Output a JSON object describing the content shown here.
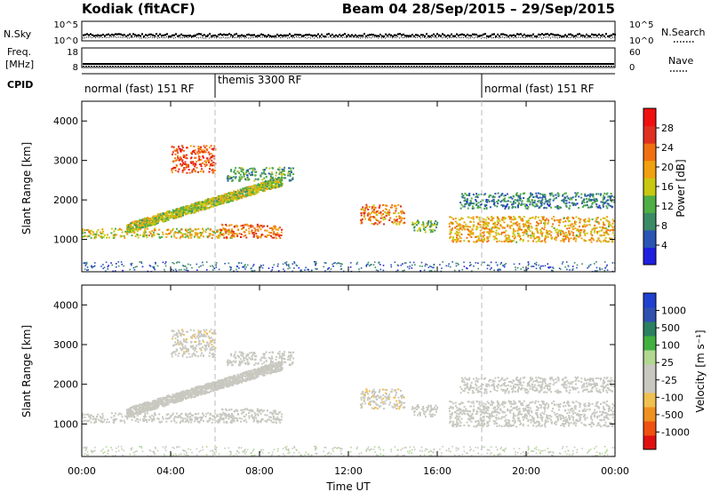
{
  "header": {
    "station": "Kodiak (fitACF)",
    "beam_info": "Beam 04  28/Sep/2015 – 29/Sep/2015"
  },
  "nsky": {
    "left_label": "N.Sky",
    "right_label": "N.Search",
    "left_ticks": [
      "10^5",
      "10^0"
    ],
    "right_ticks": [
      "10^5",
      "10^0"
    ]
  },
  "freq": {
    "left_label": "Freq.",
    "unit_label": "[MHz]",
    "right_label": "Nave",
    "left_ticks": [
      "18",
      "8"
    ],
    "right_ticks": [
      "60",
      "0"
    ]
  },
  "cpid": {
    "label": "CPID",
    "segments": [
      {
        "text": "normal (fast) 151 RF",
        "start_h": 0,
        "end_h": 6
      },
      {
        "text": "themis 3300 RF",
        "start_h": 6,
        "end_h": 18
      },
      {
        "text": "normal (fast) 151 RF",
        "start_h": 18,
        "end_h": 24
      }
    ]
  },
  "power_panel": {
    "ylabel": "Slant Range [km]",
    "yticks": [
      "1000",
      "2000",
      "3000",
      "4000"
    ],
    "colorbar_label": "Power [dB]",
    "colorbar_ticks": [
      "4",
      "8",
      "12",
      "16",
      "20",
      "24",
      "28"
    ],
    "colors": [
      "#1f1fe0",
      "#2a55b5",
      "#3a8a66",
      "#4fae45",
      "#c8c810",
      "#f0a010",
      "#f07010",
      "#e03020",
      "#f01010"
    ]
  },
  "velocity_panel": {
    "ylabel": "Slant Range [km]",
    "yticks": [
      "1000",
      "2000",
      "3000",
      "4000"
    ],
    "colorbar_label": "Velocity [m s⁻¹]",
    "colorbar_ticks": [
      "-1000",
      "-500",
      "-100",
      "-25",
      "25",
      "100",
      "500",
      "1000"
    ],
    "colors": [
      "#e01010",
      "#f05010",
      "#f09020",
      "#f0c050",
      "#c8c8c0",
      "#c8c8c0",
      "#b0d890",
      "#40b040",
      "#2a8060",
      "#3050b0",
      "#2040d0"
    ]
  },
  "time_axis": {
    "label": "Time UT",
    "ticks": [
      "00:00",
      "04:00",
      "08:00",
      "12:00",
      "16:00",
      "20:00",
      "00:00"
    ]
  },
  "chart_data": {
    "type": "heatmap",
    "title": "Kodiak (fitACF)",
    "subtitle": "Beam 04  28/Sep/2015 – 29/Sep/2015",
    "xlabel": "Time UT",
    "ylabel": "Slant Range [km]",
    "xlim_hours": [
      0,
      24
    ],
    "ylim_km": [
      180,
      4500
    ],
    "power_clim_db": [
      0,
      30
    ],
    "velocity_clim_ms": [
      -1000,
      1000
    ],
    "cpid_change_hours": [
      6,
      18
    ],
    "features": [
      {
        "name": "main-ground-band",
        "t_start": 0,
        "t_end": 7,
        "r_start": 1050,
        "r_end": 1300,
        "power_db": 16,
        "velocity_ms": 0
      },
      {
        "name": "rising-arc",
        "t_start": 2,
        "t_end": 9,
        "r_start": 1300,
        "r_end": 2500,
        "power_db": 14,
        "velocity_ms": 0
      },
      {
        "name": "high-patch",
        "t_start": 4,
        "t_end": 6,
        "r_start": 2700,
        "r_end": 3400,
        "power_db": 24,
        "velocity_ms": -150
      },
      {
        "name": "mid-band",
        "t_start": 6.2,
        "t_end": 9,
        "r_start": 1050,
        "r_end": 1400,
        "power_db": 22,
        "velocity_ms": 0
      },
      {
        "name": "upper-streak",
        "t_start": 6.5,
        "t_end": 9.5,
        "r_start": 2500,
        "r_end": 2850,
        "power_db": 10,
        "velocity_ms": 0
      },
      {
        "name": "cluster-14h",
        "t_start": 12.5,
        "t_end": 14.5,
        "r_start": 1400,
        "r_end": 1900,
        "power_db": 20,
        "velocity_ms": -200
      },
      {
        "name": "cluster-15h",
        "t_start": 14.8,
        "t_end": 16,
        "r_start": 1200,
        "r_end": 1500,
        "power_db": 12,
        "velocity_ms": -100
      },
      {
        "name": "evening-band",
        "t_start": 16.5,
        "t_end": 24,
        "r_start": 950,
        "r_end": 1600,
        "power_db": 18,
        "velocity_ms": 0
      },
      {
        "name": "evening-upper",
        "t_start": 17,
        "t_end": 24,
        "r_start": 1800,
        "r_end": 2200,
        "power_db": 8,
        "velocity_ms": 0
      }
    ]
  }
}
